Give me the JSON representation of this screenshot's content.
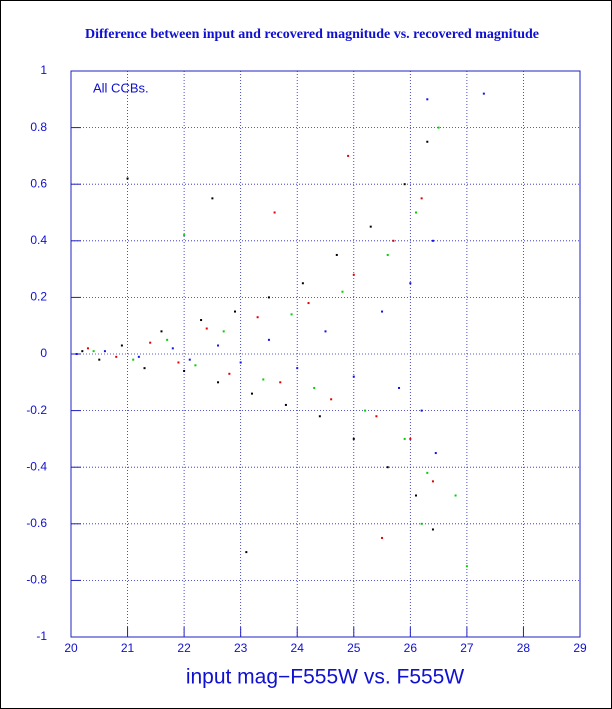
{
  "chart_data": {
    "type": "scatter",
    "title": "Difference between input and recovered magnitude vs. recovered magnitude",
    "x_label": "input mag−F555W vs. F555W",
    "annotation": "All CCBs.",
    "xlim": [
      20,
      29
    ],
    "xticks": [
      20,
      21,
      22,
      23,
      24,
      25,
      26,
      27,
      28,
      29
    ],
    "ylim": [
      -1,
      1
    ],
    "yticks": [
      -1,
      -0.8,
      -0.6,
      -0.4,
      -0.2,
      0,
      0.2,
      0.4,
      0.6,
      0.8,
      1
    ],
    "grid": true,
    "series": [
      {
        "color": "#000000",
        "x": [
          20.2,
          20.5,
          20.9,
          21.3,
          21.6,
          22.0,
          22.3,
          22.6,
          22.9,
          23.2,
          23.5,
          23.8,
          24.1,
          24.4,
          24.7,
          25.0,
          25.3,
          25.6,
          25.9,
          26.1,
          26.3,
          26.4,
          21.0,
          22.5,
          23.1
        ],
        "values": [
          0.01,
          -0.02,
          0.03,
          -0.05,
          0.08,
          -0.06,
          0.12,
          -0.1,
          0.15,
          -0.14,
          0.2,
          -0.18,
          0.25,
          -0.22,
          0.35,
          -0.3,
          0.45,
          -0.4,
          0.6,
          -0.5,
          0.75,
          -0.62,
          0.62,
          0.55,
          -0.7
        ]
      },
      {
        "color": "#e00000",
        "x": [
          20.3,
          20.8,
          21.4,
          21.9,
          22.4,
          22.8,
          23.3,
          23.7,
          24.2,
          24.6,
          25.0,
          25.4,
          25.7,
          26.0,
          26.2,
          26.4,
          24.9,
          23.6,
          25.5
        ],
        "values": [
          0.02,
          -0.01,
          0.04,
          -0.03,
          0.09,
          -0.07,
          0.13,
          -0.1,
          0.18,
          -0.16,
          0.28,
          -0.22,
          0.4,
          -0.3,
          0.55,
          -0.45,
          0.7,
          0.5,
          -0.65
        ]
      },
      {
        "color": "#00d000",
        "x": [
          20.4,
          21.1,
          21.7,
          22.2,
          22.7,
          23.4,
          23.9,
          24.3,
          24.8,
          25.2,
          25.6,
          25.9,
          26.1,
          26.3,
          26.5,
          26.2,
          22.0,
          26.8,
          27.0
        ],
        "values": [
          0.01,
          -0.02,
          0.05,
          -0.04,
          0.08,
          -0.09,
          0.14,
          -0.12,
          0.22,
          -0.2,
          0.35,
          -0.3,
          0.5,
          -0.42,
          0.8,
          -0.6,
          0.42,
          -0.5,
          -0.75
        ]
      },
      {
        "color": "#1010f0",
        "x": [
          20.1,
          20.6,
          21.2,
          21.8,
          22.1,
          22.6,
          23.0,
          23.5,
          24.0,
          24.5,
          25.0,
          25.5,
          25.8,
          26.0,
          26.2,
          26.4,
          26.45,
          26.3,
          27.3
        ],
        "values": [
          0.0,
          0.01,
          -0.01,
          0.02,
          -0.02,
          0.03,
          -0.03,
          0.05,
          -0.05,
          0.08,
          -0.08,
          0.15,
          -0.12,
          0.25,
          -0.2,
          0.4,
          -0.35,
          0.9,
          0.92
        ]
      }
    ]
  }
}
